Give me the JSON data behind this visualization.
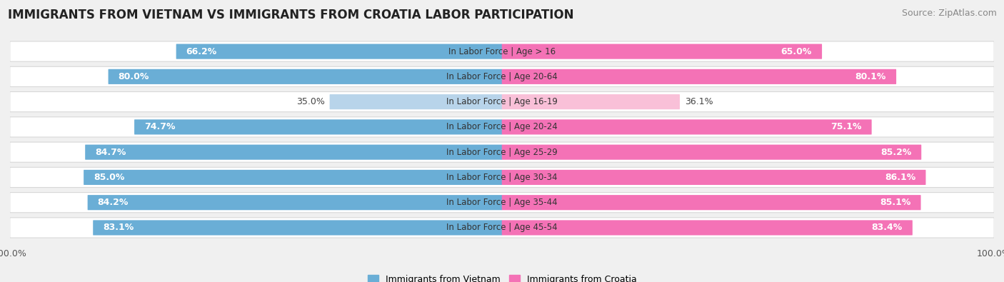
{
  "title": "IMMIGRANTS FROM VIETNAM VS IMMIGRANTS FROM CROATIA LABOR PARTICIPATION",
  "source": "Source: ZipAtlas.com",
  "categories": [
    "In Labor Force | Age > 16",
    "In Labor Force | Age 20-64",
    "In Labor Force | Age 16-19",
    "In Labor Force | Age 20-24",
    "In Labor Force | Age 25-29",
    "In Labor Force | Age 30-34",
    "In Labor Force | Age 35-44",
    "In Labor Force | Age 45-54"
  ],
  "vietnam_values": [
    66.2,
    80.0,
    35.0,
    74.7,
    84.7,
    85.0,
    84.2,
    83.1
  ],
  "croatia_values": [
    65.0,
    80.1,
    36.1,
    75.1,
    85.2,
    86.1,
    85.1,
    83.4
  ],
  "vietnam_color_full": "#6aaed6",
  "vietnam_color_light": "#b8d4ea",
  "croatia_color_full": "#f472b6",
  "croatia_color_light": "#f9c0d8",
  "background_color": "#f0f0f0",
  "row_bg_color": "#ffffff",
  "max_value": 100.0,
  "legend_vietnam": "Immigrants from Vietnam",
  "legend_croatia": "Immigrants from Croatia",
  "title_fontsize": 12,
  "source_fontsize": 9,
  "label_fontsize": 9,
  "category_fontsize": 8.5,
  "tick_fontsize": 9,
  "low_threshold": 50
}
